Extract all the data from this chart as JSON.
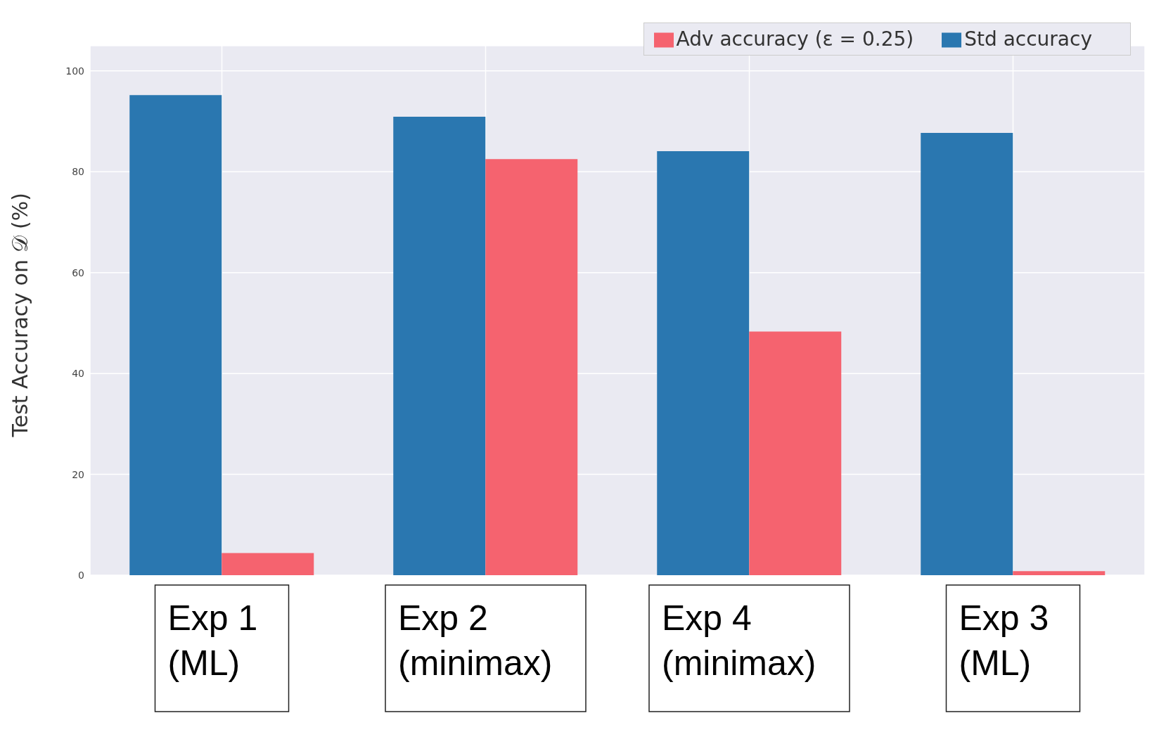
{
  "chart_data": {
    "type": "bar",
    "ylabel": "Test Accuracy on 𝒟 (%)",
    "categories": [
      "Exp 1 (ML)",
      "Exp 2 (minimax)",
      "Exp 4 (minimax)",
      "Exp 3 (ML)"
    ],
    "series": [
      {
        "name": "Std accuracy",
        "color": "#2a77b0",
        "values": [
          95.2,
          90.9,
          84.1,
          87.7
        ]
      },
      {
        "name": "Adv accuracy (ε = 0.25)",
        "color": "#f5636f",
        "values": [
          4.4,
          82.5,
          48.3,
          0.8
        ]
      }
    ],
    "ylim": [
      0,
      105
    ],
    "yticks": [
      0,
      20,
      40,
      60,
      80,
      100
    ],
    "grid": true,
    "legend": "top right"
  }
}
